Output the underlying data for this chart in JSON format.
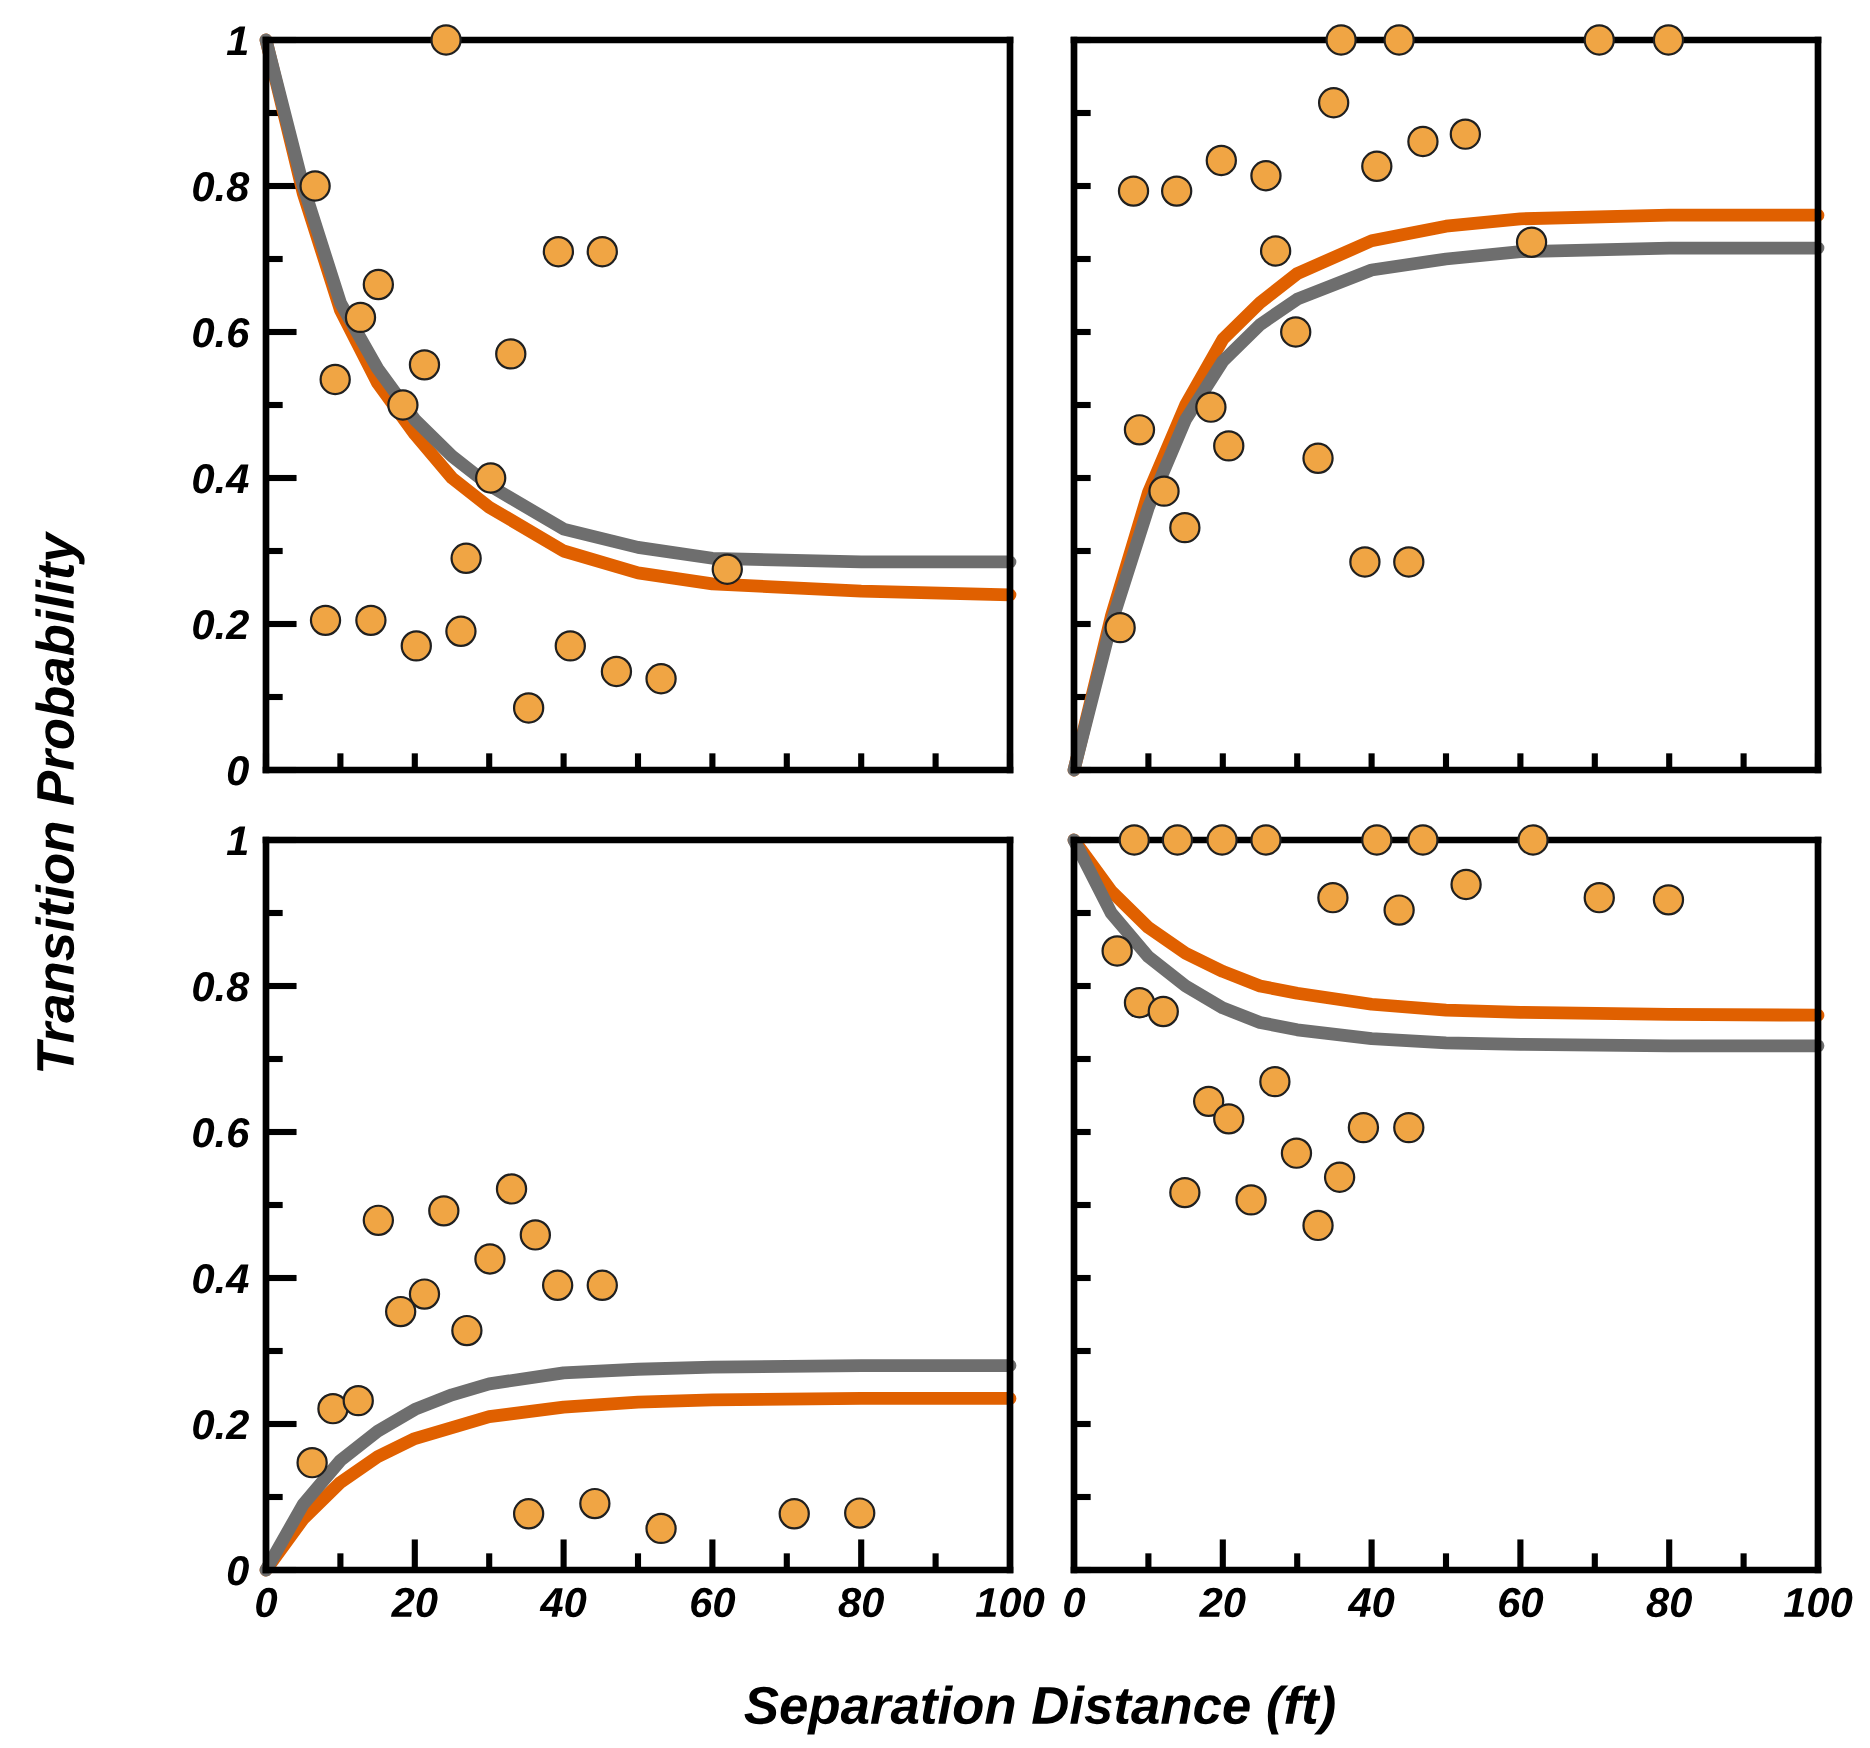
{
  "chart_data": [
    {
      "type": "scatter",
      "ylabel": "Transition Probability",
      "xlim": [
        0,
        100
      ],
      "ylim": [
        0,
        1
      ],
      "tick_labels": "y",
      "xticks": [
        {
          "value": 0,
          "label": null
        },
        {
          "value": 10,
          "label": null
        },
        {
          "value": 20,
          "label": null
        },
        {
          "value": 30,
          "label": null
        },
        {
          "value": 40,
          "label": null
        },
        {
          "value": 50,
          "label": null
        },
        {
          "value": 60,
          "label": null
        },
        {
          "value": 70,
          "label": null
        },
        {
          "value": 80,
          "label": null
        },
        {
          "value": 90,
          "label": null
        },
        {
          "value": 100,
          "label": null
        }
      ],
      "yticks": [
        0,
        {
          "value": 0.1,
          "label": null
        },
        0.2,
        {
          "value": 0.3,
          "label": null
        },
        0.4,
        {
          "value": 0.5,
          "label": null
        },
        0.6,
        {
          "value": 0.7,
          "label": null
        },
        0.8,
        {
          "value": 0.9,
          "label": null
        },
        1
      ],
      "grid": false,
      "legend": false,
      "series": [
        {
          "color": "#f0a544",
          "marker": "circle",
          "x": [
            24.2,
            6.6,
            15.1,
            12.7,
            9.3,
            21.3,
            18.4,
            32.9,
            39.3,
            45.2,
            30.2,
            26.9,
            62,
            8.0,
            14.1,
            20.2,
            26.2,
            40.9,
            47.1,
            53.1,
            35.3
          ],
          "values": [
            1.0,
            0.8,
            0.665,
            0.62,
            0.535,
            0.555,
            0.5,
            0.57,
            0.71,
            0.71,
            0.4,
            0.29,
            0.275,
            0.205,
            0.205,
            0.17,
            0.19,
            0.17,
            0.135,
            0.125,
            0.085
          ]
        },
        {
          "type": "line",
          "color": "#e06000",
          "marker": "none",
          "x": [
            0,
            5,
            10,
            15,
            20,
            25,
            30,
            40,
            50,
            60,
            80,
            100
          ],
          "values": [
            1,
            0.79,
            0.63,
            0.53,
            0.46,
            0.4,
            0.36,
            0.3,
            0.27,
            0.255,
            0.245,
            0.24
          ]
        },
        {
          "type": "line",
          "color": "#6e6e6e",
          "marker": "none",
          "x": [
            0,
            5,
            10,
            15,
            20,
            25,
            30,
            40,
            50,
            60,
            80,
            100
          ],
          "values": [
            1,
            0.8,
            0.64,
            0.55,
            0.48,
            0.43,
            0.39,
            0.33,
            0.305,
            0.29,
            0.285,
            0.285
          ]
        }
      ]
    },
    {
      "type": "scatter",
      "xlim": [
        0,
        100
      ],
      "ylim": [
        0,
        1
      ],
      "tick_labels": false,
      "xticks": [
        {
          "value": 0,
          "label": null
        },
        {
          "value": 10,
          "label": null
        },
        {
          "value": 20,
          "label": null
        },
        {
          "value": 30,
          "label": null
        },
        {
          "value": 40,
          "label": null
        },
        {
          "value": 50,
          "label": null
        },
        {
          "value": 60,
          "label": null
        },
        {
          "value": 70,
          "label": null
        },
        {
          "value": 80,
          "label": null
        },
        {
          "value": 90,
          "label": null
        },
        {
          "value": 100,
          "label": null
        }
      ],
      "yticks": [
        {
          "value": 0,
          "label": null
        },
        {
          "value": 0.1,
          "label": null
        },
        {
          "value": 0.2,
          "label": null
        },
        {
          "value": 0.3,
          "label": null
        },
        {
          "value": 0.4,
          "label": null
        },
        {
          "value": 0.5,
          "label": null
        },
        {
          "value": 0.6,
          "label": null
        },
        {
          "value": 0.7,
          "label": null
        },
        {
          "value": 0.8,
          "label": null
        },
        {
          "value": 0.9,
          "label": null
        },
        {
          "value": 1,
          "label": null
        }
      ],
      "grid": false,
      "legend": false,
      "series": [
        {
          "color": "#f0a544",
          "marker": "circle",
          "x": [
            35.9,
            43.7,
            70.6,
            79.9,
            34.9,
            52.6,
            46.9,
            40.7,
            19.8,
            25.8,
            8.0,
            13.8,
            27.1,
            61.5,
            29.8,
            18.4,
            8.8,
            20.8,
            32.8,
            12.1,
            14.9,
            39.1,
            45.0,
            6.2
          ],
          "values": [
            1.0,
            1.0,
            1.0,
            1.0,
            0.914,
            0.871,
            0.861,
            0.827,
            0.835,
            0.814,
            0.793,
            0.793,
            0.711,
            0.723,
            0.6,
            0.497,
            0.466,
            0.444,
            0.427,
            0.382,
            0.332,
            0.285,
            0.285,
            0.195
          ]
        },
        {
          "type": "line",
          "color": "#e06000",
          "marker": "none",
          "x": [
            0,
            5,
            10,
            15,
            20,
            25,
            30,
            40,
            50,
            60,
            80,
            100
          ],
          "values": [
            0,
            0.21,
            0.38,
            0.5,
            0.59,
            0.64,
            0.68,
            0.725,
            0.745,
            0.755,
            0.76,
            0.76
          ]
        },
        {
          "type": "line",
          "color": "#6e6e6e",
          "marker": "none",
          "x": [
            0,
            5,
            10,
            15,
            20,
            25,
            30,
            40,
            50,
            60,
            80,
            100
          ],
          "values": [
            0,
            0.2,
            0.36,
            0.48,
            0.56,
            0.61,
            0.645,
            0.685,
            0.7,
            0.71,
            0.715,
            0.715
          ]
        }
      ]
    },
    {
      "type": "scatter",
      "xlabel": "Separation Distance (ft)",
      "xlim": [
        0,
        100
      ],
      "ylim": [
        0,
        1
      ],
      "xticks": [
        0,
        {
          "value": 10,
          "label": null
        },
        20,
        {
          "value": 30,
          "label": null
        },
        40,
        {
          "value": 50,
          "label": null
        },
        60,
        {
          "value": 70,
          "label": null
        },
        80,
        {
          "value": 90,
          "label": null
        },
        100
      ],
      "yticks": [
        0,
        {
          "value": 0.1,
          "label": null
        },
        0.2,
        {
          "value": 0.3,
          "label": null
        },
        0.4,
        {
          "value": 0.5,
          "label": null
        },
        0.6,
        {
          "value": 0.7,
          "label": null
        },
        0.8,
        {
          "value": 0.9,
          "label": null
        },
        1
      ],
      "grid": false,
      "legend": false,
      "series": [
        {
          "color": "#f0a544",
          "marker": "circle",
          "x": [
            6.2,
            9.0,
            12.4,
            15.1,
            23.9,
            33.0,
            36.2,
            30.1,
            21.3,
            18.1,
            27.0,
            39.2,
            45.2,
            35.3,
            44.2,
            53.1,
            71.0,
            79.8
          ],
          "values": [
            0.147,
            0.221,
            0.232,
            0.479,
            0.492,
            0.522,
            0.459,
            0.426,
            0.378,
            0.354,
            0.328,
            0.39,
            0.39,
            0.077,
            0.091,
            0.057,
            0.077,
            0.078
          ]
        },
        {
          "type": "line",
          "color": "#e06000",
          "marker": "none",
          "x": [
            0,
            5,
            10,
            15,
            20,
            25,
            30,
            40,
            50,
            60,
            80,
            100
          ],
          "values": [
            0,
            0.07,
            0.12,
            0.155,
            0.18,
            0.195,
            0.21,
            0.223,
            0.23,
            0.233,
            0.235,
            0.235
          ]
        },
        {
          "type": "line",
          "color": "#6e6e6e",
          "marker": "none",
          "x": [
            0,
            5,
            10,
            15,
            20,
            25,
            30,
            40,
            50,
            60,
            80,
            100
          ],
          "values": [
            0,
            0.09,
            0.15,
            0.19,
            0.22,
            0.24,
            0.255,
            0.27,
            0.275,
            0.278,
            0.28,
            0.28
          ]
        }
      ]
    },
    {
      "type": "scatter",
      "xlim": [
        0,
        100
      ],
      "ylim": [
        0,
        1
      ],
      "tick_labels": "x",
      "xticks": [
        0,
        {
          "value": 10,
          "label": null
        },
        20,
        {
          "value": 30,
          "label": null
        },
        40,
        {
          "value": 50,
          "label": null
        },
        60,
        {
          "value": 70,
          "label": null
        },
        80,
        {
          "value": 90,
          "label": null
        },
        100
      ],
      "yticks": [
        {
          "value": 0,
          "label": null
        },
        {
          "value": 0.1,
          "label": null
        },
        {
          "value": 0.2,
          "label": null
        },
        {
          "value": 0.3,
          "label": null
        },
        {
          "value": 0.4,
          "label": null
        },
        {
          "value": 0.5,
          "label": null
        },
        {
          "value": 0.6,
          "label": null
        },
        {
          "value": 0.7,
          "label": null
        },
        {
          "value": 0.8,
          "label": null
        },
        {
          "value": 0.9,
          "label": null
        },
        {
          "value": 1,
          "label": null
        }
      ],
      "grid": false,
      "legend": false,
      "series": [
        {
          "color": "#f0a544",
          "marker": "circle",
          "x": [
            8.1,
            13.9,
            19.9,
            25.8,
            40.7,
            46.9,
            61.7,
            34.8,
            43.7,
            52.7,
            70.6,
            79.9,
            5.8,
            8.8,
            12.0,
            27.0,
            18.1,
            20.8,
            38.9,
            45.0,
            29.9,
            35.7,
            14.9,
            23.8,
            32.8
          ],
          "values": [
            1.0,
            1.0,
            1.0,
            1.0,
            1.0,
            1.0,
            1.0,
            0.921,
            0.904,
            0.939,
            0.921,
            0.918,
            0.848,
            0.777,
            0.765,
            0.669,
            0.642,
            0.618,
            0.606,
            0.606,
            0.571,
            0.538,
            0.517,
            0.507,
            0.472
          ]
        },
        {
          "type": "line",
          "color": "#e06000",
          "marker": "none",
          "x": [
            0,
            5,
            10,
            15,
            20,
            25,
            30,
            40,
            50,
            60,
            80,
            100
          ],
          "values": [
            1,
            0.93,
            0.88,
            0.845,
            0.82,
            0.8,
            0.79,
            0.775,
            0.767,
            0.764,
            0.761,
            0.76
          ]
        },
        {
          "type": "line",
          "color": "#6e6e6e",
          "marker": "none",
          "x": [
            0,
            5,
            10,
            15,
            20,
            25,
            30,
            40,
            50,
            60,
            80,
            100
          ],
          "values": [
            1,
            0.9,
            0.84,
            0.8,
            0.77,
            0.75,
            0.74,
            0.728,
            0.722,
            0.72,
            0.718,
            0.718
          ]
        }
      ]
    }
  ]
}
